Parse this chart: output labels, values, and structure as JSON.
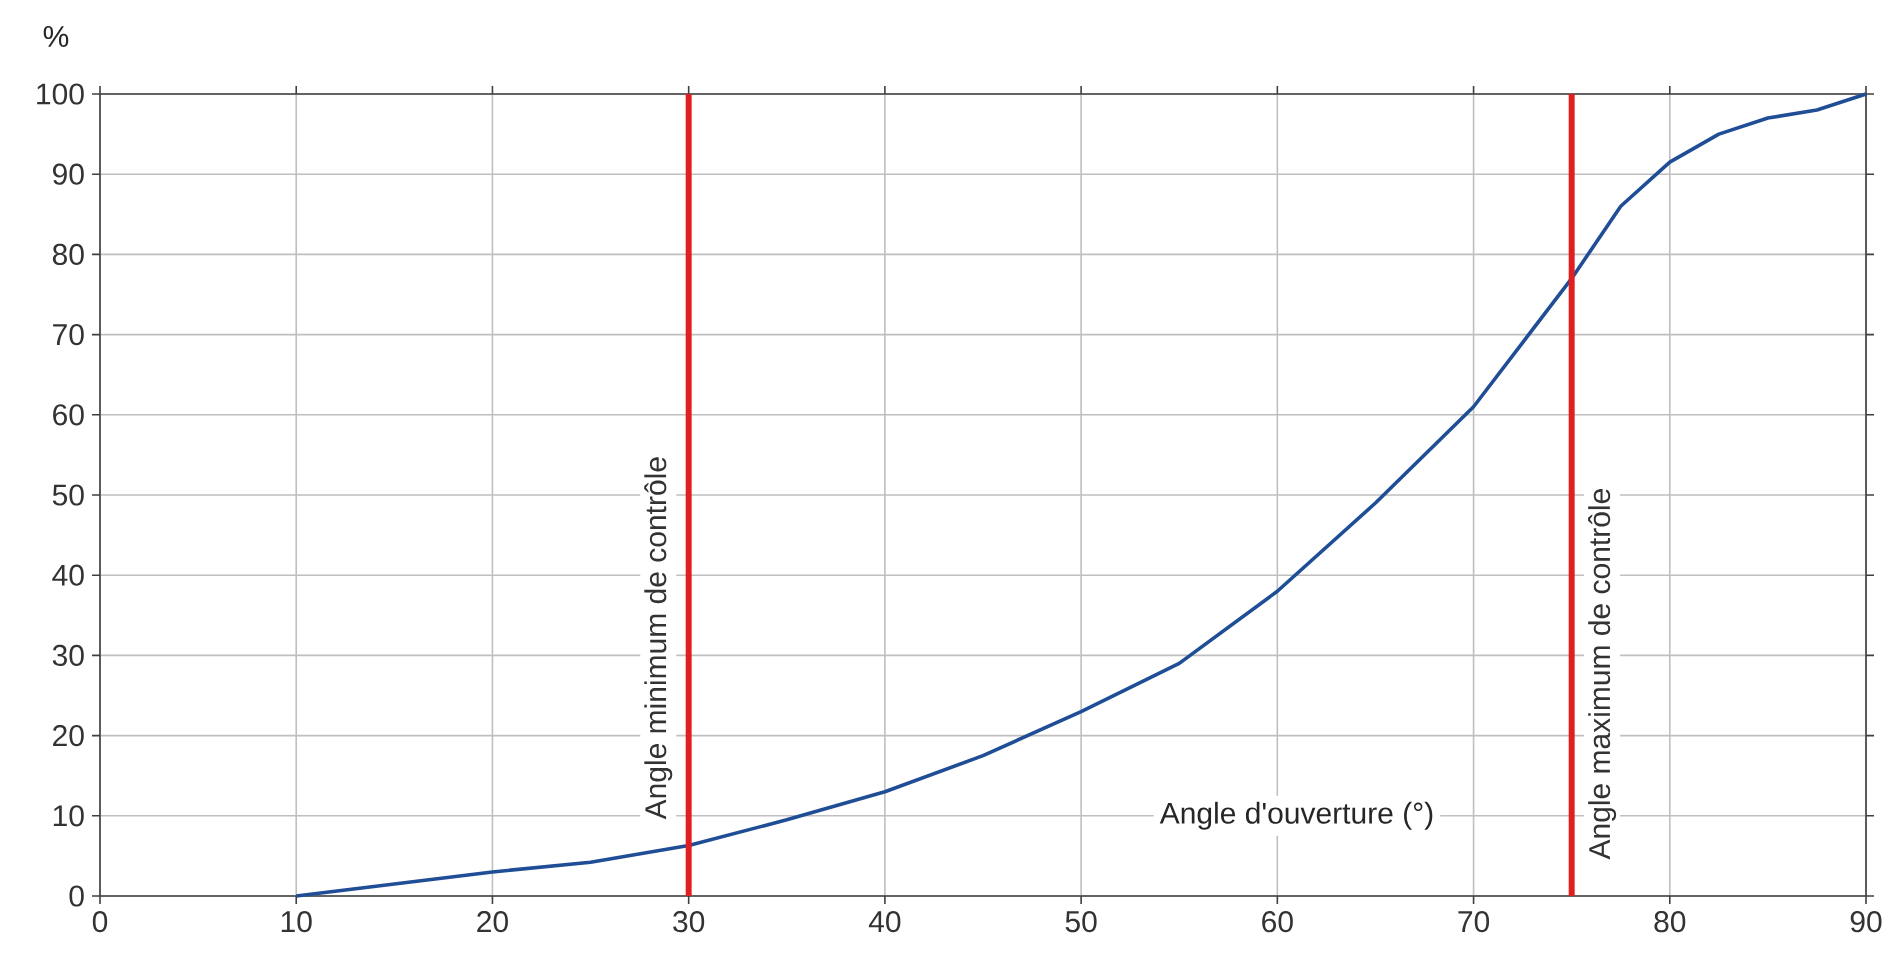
{
  "chart_data": {
    "type": "line",
    "xlabel": "Angle d'ouverture (°)",
    "ylabel": "%",
    "x": [
      10,
      15,
      20,
      25,
      30,
      35,
      40,
      45,
      50,
      55,
      60,
      65,
      70,
      72.5,
      75,
      77.5,
      80,
      82.5,
      85,
      87.5,
      90
    ],
    "series": [
      {
        "color": "#1f4e96",
        "values": [
          0,
          1.5,
          3,
          4.2,
          6.3,
          9.5,
          13,
          17.5,
          23,
          29,
          38,
          49,
          61,
          69,
          77,
          86,
          91.5,
          95,
          97,
          98,
          100
        ]
      }
    ],
    "xlim": [
      0,
      90
    ],
    "xticks": [
      0,
      10,
      20,
      30,
      40,
      50,
      60,
      70,
      80,
      90
    ],
    "ylim": [
      0,
      100
    ],
    "yticks": [
      0,
      10,
      20,
      30,
      40,
      50,
      60,
      70,
      80,
      90,
      100
    ],
    "ref_lines": [
      {
        "axis": "x",
        "value": 30,
        "label": "Angle minimum de contrôle",
        "color": "#e02020"
      },
      {
        "axis": "x",
        "value": 75,
        "label": "Angle maximum de contrôle",
        "color": "#e02020"
      }
    ],
    "grid": true,
    "marker": "none",
    "line_style": "solid"
  }
}
